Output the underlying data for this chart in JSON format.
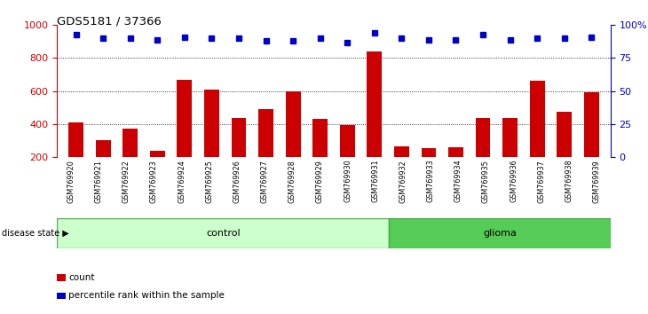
{
  "title": "GDS5181 / 37366",
  "samples": [
    "GSM769920",
    "GSM769921",
    "GSM769922",
    "GSM769923",
    "GSM769924",
    "GSM769925",
    "GSM769926",
    "GSM769927",
    "GSM769928",
    "GSM769929",
    "GSM769930",
    "GSM769931",
    "GSM769932",
    "GSM769933",
    "GSM769934",
    "GSM769935",
    "GSM769936",
    "GSM769937",
    "GSM769938",
    "GSM769939"
  ],
  "counts": [
    410,
    300,
    370,
    240,
    670,
    610,
    435,
    490,
    600,
    430,
    395,
    840,
    265,
    255,
    258,
    435,
    435,
    665,
    475,
    595
  ],
  "percentiles": [
    93,
    90,
    90,
    89,
    91,
    90,
    90,
    88,
    88,
    90,
    87,
    94,
    90,
    89,
    89,
    93,
    89,
    90,
    90,
    91
  ],
  "n_control": 12,
  "n_glioma": 8,
  "bar_color": "#cc0000",
  "dot_color": "#0000cc",
  "control_bg_light": "#ccffcc",
  "control_bg_dark": "#66dd66",
  "glioma_bg": "#55cc55",
  "ylim_left": [
    200,
    1000
  ],
  "ylim_right": [
    0,
    100
  ],
  "yticks_left": [
    200,
    400,
    600,
    800,
    1000
  ],
  "yticks_right": [
    0,
    25,
    50,
    75,
    100
  ],
  "grid_values": [
    400,
    600,
    800
  ],
  "legend_count_label": "count",
  "legend_pct_label": "percentile rank within the sample",
  "disease_state_label": "disease state",
  "control_label": "control",
  "glioma_label": "glioma",
  "tick_bg_color": "#c8c8c8",
  "plot_bg": "#ffffff"
}
